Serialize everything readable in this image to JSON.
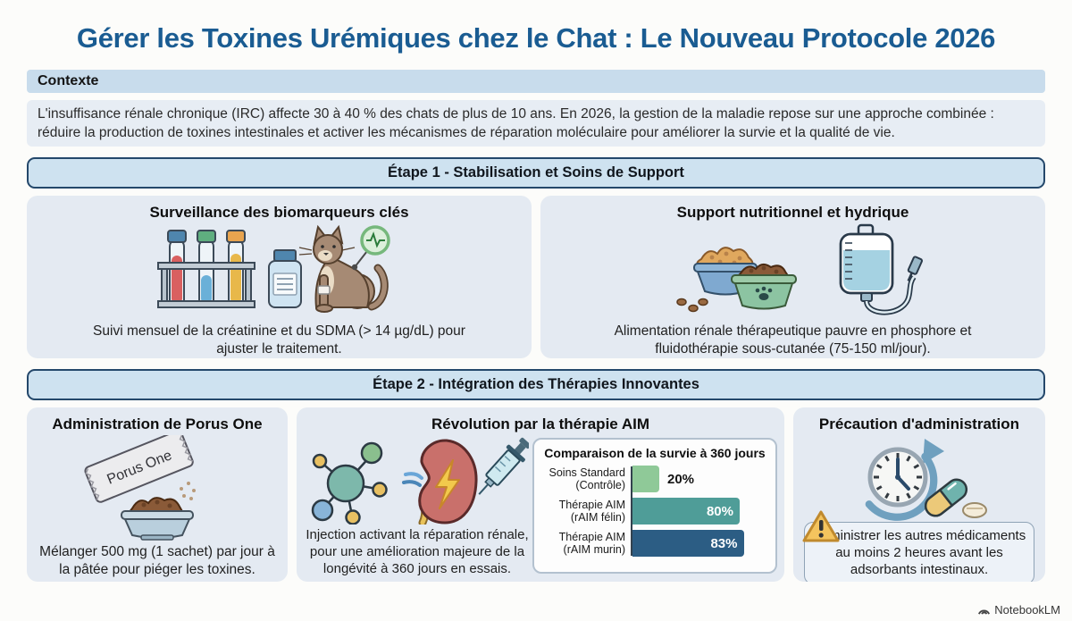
{
  "page": {
    "title": "Gérer les Toxines Urémiques chez le Chat : Le Nouveau Protocole 2026",
    "watermark": "NotebookLM"
  },
  "context": {
    "header": "Contexte",
    "body": "L'insuffisance rénale chronique (IRC) affecte 30 à 40 % des chats de plus de 10 ans. En 2026, la gestion de la maladie repose sur une approche combinée : réduire la production de toxines intestinales et activer les mécanismes de réparation moléculaire pour améliorer la survie et la qualité de vie."
  },
  "step1": {
    "header": "Étape 1 - Stabilisation et Soins de Support",
    "cards": [
      {
        "title": "Surveillance des biomarqueurs clés",
        "caption": "Suivi mensuel de la créatinine et du SDMA (> 14 µg/dL) pour ajuster le traitement.",
        "icons": [
          "test-tube-rack-icon",
          "sample-bottle-icon",
          "cat-with-monitor-icon"
        ]
      },
      {
        "title": "Support nutritionnel et hydrique",
        "caption": "Alimentation rénale thérapeutique pauvre en phosphore et fluidothérapie sous-cutanée (75-150 ml/jour).",
        "icons": [
          "food-bowls-icon",
          "iv-fluid-bag-icon"
        ]
      }
    ]
  },
  "step2": {
    "header": "Étape 2 - Intégration des Thérapies Innovantes",
    "cards": [
      {
        "title": "Administration de Porus One",
        "sachet_label": "Porus One",
        "caption": "Mélanger 500 mg (1 sachet) par jour à la pâtée pour piéger les toxines.",
        "icons": [
          "porus-one-sachet-icon",
          "food-bowl-icon"
        ]
      },
      {
        "title": "Révolution par la thérapie AIM",
        "caption": "Injection activant la réparation rénale, pour une amélioration majeure de la longévité à 360 jours en essais.",
        "icons": [
          "molecule-icon",
          "kidney-icon",
          "syringe-icon"
        ]
      },
      {
        "title": "Précaution d'administration",
        "warning": "Administrer les autres médicaments au moins 2 heures avant les adsorbants intestinaux.",
        "icons": [
          "clock-timer-icon",
          "capsule-icon",
          "pill-icon",
          "warning-triangle-icon"
        ]
      }
    ]
  },
  "chart_data": {
    "type": "bar",
    "orientation": "horizontal",
    "title": "Comparaison de la survie à 360 jours",
    "categories": [
      "Soins Standard (Contrôle)",
      "Thérapie AIM (rAIM félin)",
      "Thérapie AIM (rAIM murin)"
    ],
    "values": [
      20,
      80,
      83
    ],
    "unit": "%",
    "xlim": [
      0,
      100
    ],
    "grid": false,
    "legend": "none",
    "bar_colors": [
      "#8fc998",
      "#4f9d98",
      "#2c5d84"
    ],
    "value_label_colors": [
      "#141414",
      "#ffffff",
      "#ffffff"
    ]
  },
  "colors": {
    "title_text": "#1a5c92",
    "context_bar_bg": "#c8dcec",
    "stage_header_bg": "#cee2f0",
    "stage_header_border": "#24486b",
    "card_bg": "#e4eaf2",
    "warning_yellow": "#f4c45e"
  }
}
